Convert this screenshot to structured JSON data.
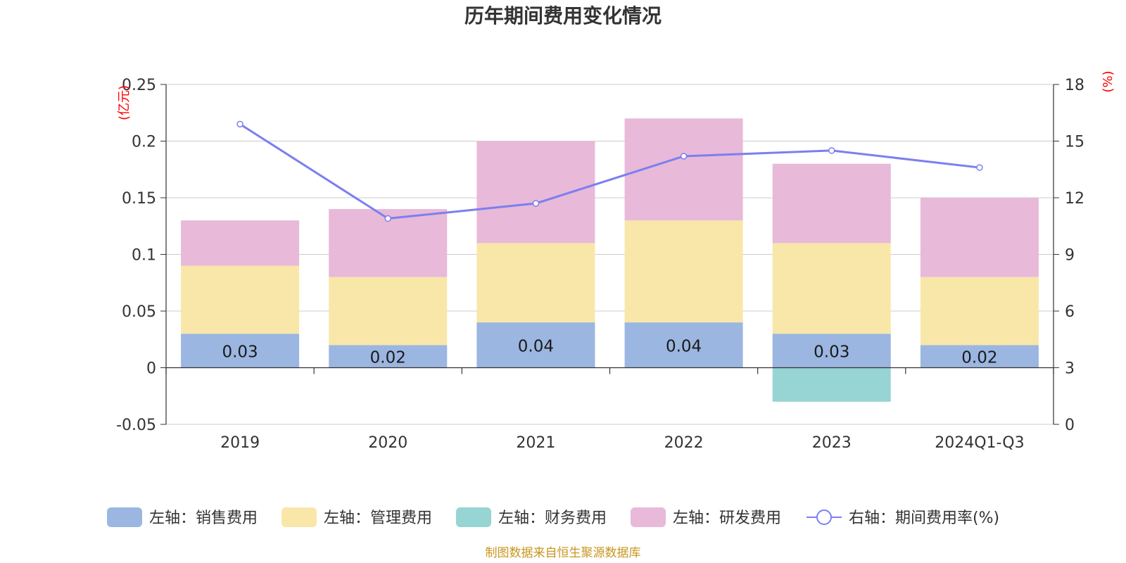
{
  "chart_data": {
    "type": "bar",
    "title": "历年期间费用变化情况",
    "left_unit": "(亿元)",
    "right_unit": "(%)",
    "categories": [
      "2019",
      "2020",
      "2021",
      "2022",
      "2023",
      "2024Q1-Q3"
    ],
    "left_axis": {
      "min": -0.05,
      "max": 0.25,
      "ticks": [
        "0.25",
        "0.2",
        "0.15",
        "0.1",
        "0.05",
        "0",
        "-0.05"
      ]
    },
    "right_axis": {
      "min": 0,
      "max": 18,
      "ticks": [
        "18",
        "15",
        "12",
        "9",
        "6",
        "3",
        "0"
      ]
    },
    "series": [
      {
        "name": "左轴：销售费用",
        "axis": "left",
        "color": "#9bb6e0",
        "values": [
          0.03,
          0.02,
          0.04,
          0.04,
          0.03,
          0.02
        ],
        "labels": [
          "0.03",
          "0.02",
          "0.04",
          "0.04",
          "0.03",
          "0.02"
        ]
      },
      {
        "name": "左轴：管理费用",
        "axis": "left",
        "color": "#f8e7a8",
        "values": [
          0.06,
          0.06,
          0.07,
          0.09,
          0.08,
          0.06
        ]
      },
      {
        "name": "左轴：财务费用",
        "axis": "left",
        "color": "#97d4d4",
        "values": [
          0,
          0,
          0,
          0,
          -0.03,
          0
        ]
      },
      {
        "name": "左轴：研发费用",
        "axis": "left",
        "color": "#e8b9d9",
        "values": [
          0.04,
          0.06,
          0.09,
          0.09,
          0.07,
          0.07
        ]
      },
      {
        "name": "右轴：期间费用率(%)",
        "axis": "right",
        "type": "line",
        "color": "#7b7ff0",
        "values": [
          15.9,
          10.9,
          11.7,
          14.2,
          14.5,
          13.6
        ]
      }
    ],
    "legend_position": "bottom",
    "grid": true
  },
  "source_note": "制图数据来自恒生聚源数据库"
}
